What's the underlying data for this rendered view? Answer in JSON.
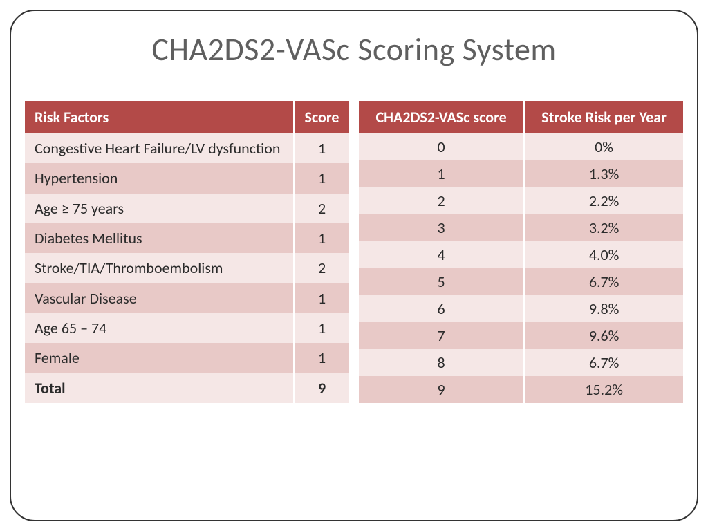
{
  "title": "CHA2DS2-VASc Scoring System",
  "colors": {
    "header_bg": "#b34a48",
    "header_text": "#ffffff",
    "row_light": "#f5e7e6",
    "row_dark": "#e8c9c7",
    "title_text": "#5f5f5f",
    "cell_text": "#2b2b2b",
    "frame_border": "#333333"
  },
  "left_table": {
    "type": "table",
    "columns": [
      "Risk Factors",
      "Score"
    ],
    "col_align": [
      "left",
      "center"
    ],
    "rows": [
      {
        "factor": "Congestive Heart Failure/LV dysfunction",
        "score": "1",
        "shade": "light"
      },
      {
        "factor": "Hypertension",
        "score": "1",
        "shade": "dark"
      },
      {
        "factor": "Age ≥ 75 years",
        "score": "2",
        "shade": "light"
      },
      {
        "factor": "Diabetes Mellitus",
        "score": "1",
        "shade": "dark"
      },
      {
        "factor": "Stroke/TIA/Thromboembolism",
        "score": "2",
        "shade": "light"
      },
      {
        "factor": "Vascular Disease",
        "score": "1",
        "shade": "dark"
      },
      {
        "factor": "Age 65 – 74",
        "score": "1",
        "shade": "light"
      },
      {
        "factor": "Female",
        "score": "1",
        "shade": "dark"
      }
    ],
    "total_row": {
      "label": "Total",
      "value": "9",
      "shade": "light"
    }
  },
  "right_table": {
    "type": "table",
    "columns": [
      "CHA2DS2-VASc score",
      "Stroke Risk per Year"
    ],
    "col_align": [
      "center",
      "center"
    ],
    "rows": [
      {
        "score": "0",
        "risk": "0%",
        "shade": "light"
      },
      {
        "score": "1",
        "risk": "1.3%",
        "shade": "dark"
      },
      {
        "score": "2",
        "risk": "2.2%",
        "shade": "light"
      },
      {
        "score": "3",
        "risk": "3.2%",
        "shade": "dark"
      },
      {
        "score": "4",
        "risk": "4.0%",
        "shade": "light"
      },
      {
        "score": "5",
        "risk": "6.7%",
        "shade": "dark"
      },
      {
        "score": "6",
        "risk": "9.8%",
        "shade": "light"
      },
      {
        "score": "7",
        "risk": "9.6%",
        "shade": "dark"
      },
      {
        "score": "8",
        "risk": "6.7%",
        "shade": "light"
      },
      {
        "score": "9",
        "risk": "15.2%",
        "shade": "dark"
      }
    ]
  }
}
